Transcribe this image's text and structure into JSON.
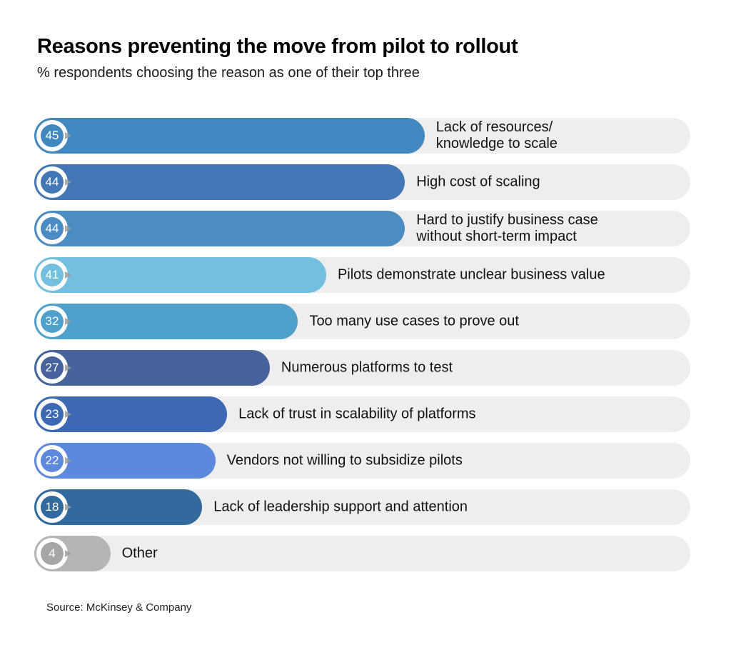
{
  "header": {
    "title": "Reasons preventing the move from pilot to rollout",
    "subtitle": "% respondents choosing the reason as one of their top three"
  },
  "footer": {
    "source": "Source: McKinsey & Company"
  },
  "chart_data": {
    "type": "bar",
    "orientation": "horizontal",
    "title": "Reasons preventing the move from pilot to rollout",
    "subtitle": "% respondents choosing the reason as one of their top three",
    "unit": "% of respondents",
    "legend": "none",
    "grid": "off",
    "track_color": "#eeeeee",
    "categories": [
      "Lack of resources/knowledge to scale",
      "High cost of scaling",
      "Hard to justify business case without short-term impact",
      "Pilots demonstrate unclear business value",
      "Too many use cases to prove out",
      "Numerous platforms to test",
      "Lack of trust in scalability of platforms",
      "Vendors not willing to subsidize pilots",
      "Lack of leadership support and attention",
      "Other"
    ],
    "values": [
      45,
      44,
      44,
      41,
      32,
      27,
      23,
      22,
      18,
      4
    ],
    "bars": [
      {
        "value": 45,
        "label": "Lack of resources/\nknowledge to scale",
        "color": "#4088bf",
        "track_fraction": 0.595
      },
      {
        "value": 44,
        "label": "High cost of scaling",
        "color": "#4477b5",
        "track_fraction": 0.565
      },
      {
        "value": 44,
        "label": "Hard to justify business case\nwithout short-term impact",
        "color": "#4b8cc2",
        "track_fraction": 0.565
      },
      {
        "value": 41,
        "label": "Pilots demonstrate unclear business value",
        "color": "#73bfdf",
        "track_fraction": 0.445
      },
      {
        "value": 32,
        "label": "Too many use cases to prove out",
        "color": "#4fa0ca",
        "track_fraction": 0.402
      },
      {
        "value": 27,
        "label": "Numerous platforms to test",
        "color": "#47639b",
        "track_fraction": 0.359
      },
      {
        "value": 23,
        "label": "Lack of trust in scalability of platforms",
        "color": "#3c68b4",
        "track_fraction": 0.294
      },
      {
        "value": 22,
        "label": "Vendors not willing to subsidize pilots",
        "color": "#5d89dd",
        "track_fraction": 0.276
      },
      {
        "value": 18,
        "label": "Lack of leadership support and attention",
        "color": "#326a9d",
        "track_fraction": 0.256
      },
      {
        "value": 4,
        "label": "Other",
        "color": "#b5b5b5",
        "badge_color": "#a6a6a6",
        "track_fraction": 0.116
      }
    ]
  }
}
